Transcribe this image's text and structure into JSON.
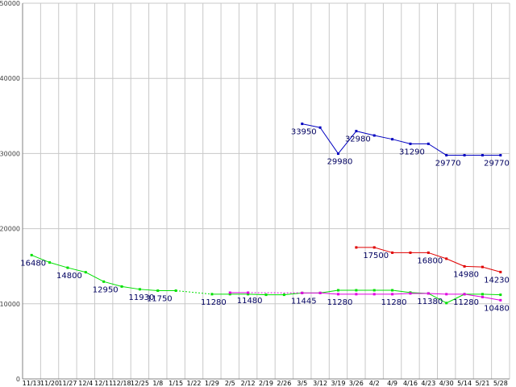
{
  "chart_data": {
    "type": "line",
    "categories": [
      "11/13",
      "11/20",
      "11/27",
      "12/4",
      "12/11",
      "12/18",
      "12/25",
      "1/8",
      "1/15",
      "1/22",
      "1/29",
      "2/5",
      "2/12",
      "2/19",
      "2/26",
      "3/5",
      "3/12",
      "3/19",
      "3/26",
      "4/2",
      "4/9",
      "4/16",
      "4/23",
      "4/30",
      "5/14",
      "5/21",
      "5/28"
    ],
    "ylim": [
      0,
      50000
    ],
    "yticks": [
      0,
      10000,
      20000,
      30000,
      40000,
      50000
    ],
    "ytick_labels": [
      "0",
      "10000",
      "20000",
      "30000",
      "40000",
      "50000"
    ],
    "grid": true,
    "series": [
      {
        "color": "#0000c0",
        "values": [
          null,
          null,
          null,
          null,
          null,
          null,
          null,
          null,
          null,
          null,
          null,
          null,
          null,
          null,
          null,
          33950,
          33450,
          29980,
          32980,
          32400,
          31900,
          31290,
          31290,
          29770,
          29770,
          29770,
          29770
        ]
      },
      {
        "color": "#e00000",
        "values": [
          null,
          null,
          null,
          null,
          null,
          null,
          null,
          null,
          null,
          null,
          null,
          null,
          null,
          null,
          null,
          null,
          null,
          null,
          17500,
          17500,
          16800,
          16800,
          16800,
          16000,
          14980,
          14900,
          14230
        ]
      },
      {
        "color": "#00e000",
        "values": [
          16480,
          15500,
          14800,
          14200,
          12950,
          12300,
          11930,
          11750,
          11750,
          null,
          11280,
          11280,
          11280,
          11200,
          11200,
          11445,
          11445,
          11800,
          11800,
          11800,
          11800,
          11500,
          11380,
          10100,
          11280,
          11280,
          11200
        ]
      },
      {
        "color": "#e000e0",
        "values": [
          null,
          null,
          null,
          null,
          null,
          null,
          null,
          null,
          null,
          null,
          null,
          11480,
          11480,
          null,
          null,
          11445,
          11445,
          11280,
          11280,
          11280,
          11280,
          11380,
          11380,
          11280,
          11280,
          10900,
          10480
        ]
      }
    ],
    "annotations": [
      {
        "x": "11/13",
        "y": 16480,
        "text": "16480"
      },
      {
        "x": "11/27",
        "y": 14800,
        "text": "14800"
      },
      {
        "x": "12/11",
        "y": 12950,
        "text": "12950"
      },
      {
        "x": "12/25",
        "y": 11930,
        "text": "11930"
      },
      {
        "x": "1/8",
        "y": 11750,
        "text": "11750"
      },
      {
        "x": "1/29",
        "y": 11280,
        "text": "11280"
      },
      {
        "x": "2/12",
        "y": 11480,
        "text": "11480"
      },
      {
        "x": "3/5",
        "y": 11445,
        "text": "11445"
      },
      {
        "x": "3/19",
        "y": 11280,
        "text": "11280"
      },
      {
        "x": "4/9",
        "y": 11280,
        "text": "11280"
      },
      {
        "x": "4/23",
        "y": 11380,
        "text": "11380"
      },
      {
        "x": "5/14",
        "y": 11280,
        "text": "11280"
      },
      {
        "x": "5/28",
        "y": 10480,
        "text": "10480"
      },
      {
        "x": "3/5",
        "y": 33950,
        "text": "33950"
      },
      {
        "x": "3/19",
        "y": 29980,
        "text": "29980"
      },
      {
        "x": "3/26",
        "y": 32980,
        "text": "32980"
      },
      {
        "x": "4/16",
        "y": 31290,
        "text": "31290"
      },
      {
        "x": "4/30",
        "y": 29770,
        "text": "29770"
      },
      {
        "x": "5/28",
        "y": 29770,
        "text": "29770"
      },
      {
        "x": "4/2",
        "y": 17500,
        "text": "17500"
      },
      {
        "x": "4/23",
        "y": 16800,
        "text": "16800"
      },
      {
        "x": "5/14",
        "y": 14980,
        "text": "14980"
      },
      {
        "x": "5/28",
        "y": 14230,
        "text": "14230"
      }
    ]
  }
}
